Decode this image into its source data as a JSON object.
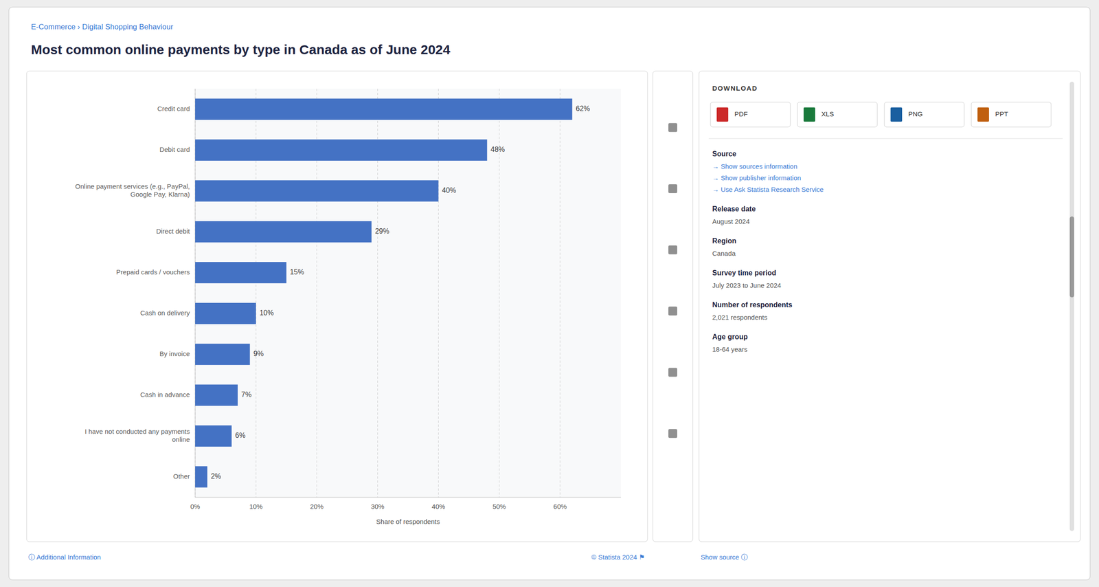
{
  "chart_data": {
    "type": "bar",
    "orientation": "horizontal",
    "title": "Most common online payments by type in Canada as of June 2024",
    "categories": [
      "Credit card",
      "Debit card",
      "Online payment services (e.g., PayPal,\nGoogle Pay, Klarna)",
      "Direct debit",
      "Prepaid cards / vouchers",
      "Cash on delivery",
      "By invoice",
      "Cash in advance",
      "I have not conducted any payments\nonline",
      "Other"
    ],
    "values": [
      62,
      48,
      40,
      29,
      15,
      10,
      9,
      7,
      6,
      2
    ],
    "value_labels": [
      "62%",
      "48%",
      "40%",
      "29%",
      "15%",
      "10%",
      "9%",
      "7%",
      "6%",
      "2%"
    ],
    "color": "#4472C4",
    "xlabel": "Share of respondents",
    "xlim": [
      0,
      70
    ],
    "xticks": [
      {
        "value": 0,
        "label": "0%"
      },
      {
        "value": 10,
        "label": "10%"
      },
      {
        "value": 20,
        "label": "20%"
      },
      {
        "value": 30,
        "label": "30%"
      },
      {
        "value": 40,
        "label": "40%"
      },
      {
        "value": 50,
        "label": "50%"
      },
      {
        "value": 60,
        "label": "60%"
      }
    ],
    "grid": true,
    "data_labels": true
  },
  "page": {
    "breadcrumb": "E-Commerce › Digital Shopping Behaviour",
    "download_title": "DOWNLOAD",
    "download_buttons": [
      {
        "label": "PDF",
        "color": "#cc2929"
      },
      {
        "label": "XLS",
        "color": "#1a7a3c"
      },
      {
        "label": "PNG",
        "color": "#1a5fa0"
      },
      {
        "label": "PPT",
        "color": "#c06010"
      }
    ],
    "info": [
      {
        "title": "Source",
        "lines": [
          "→ Show sources information",
          "→ Show publisher information",
          "→ Use Ask Statista Research Service"
        ]
      },
      {
        "title": "Release date",
        "lines": [
          "August 2024"
        ]
      },
      {
        "title": "Region",
        "lines": [
          "Canada"
        ]
      },
      {
        "title": "Survey time period",
        "lines": [
          "July 2023 to June 2024"
        ]
      },
      {
        "title": "Number of respondents",
        "lines": [
          "2,021 respondents"
        ]
      },
      {
        "title": "Age group",
        "lines": [
          "18-64 years"
        ]
      }
    ],
    "footer_copyright": "© Statista 2024  ⚑",
    "footer_show_source": "Show source  ⓘ",
    "footer_additional_info": "ⓘ Additional Information"
  }
}
